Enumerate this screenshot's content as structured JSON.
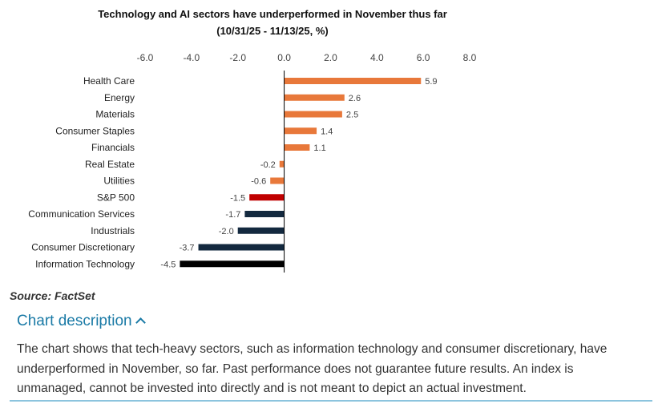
{
  "chart_data": {
    "type": "bar",
    "orientation": "horizontal",
    "title": "Technology and AI sectors have underperformed in November thus far",
    "subtitle": "(10/31/25 - 11/13/25, %)",
    "xlim": [
      -6,
      8
    ],
    "xticks": [
      "-6.0",
      "-4.0",
      "-2.0",
      "0.0",
      "2.0",
      "4.0",
      "6.0",
      "8.0"
    ],
    "xtick_values": [
      -6,
      -4,
      -2,
      0,
      2,
      4,
      6,
      8
    ],
    "categories": [
      "Health Care",
      "Energy",
      "Materials",
      "Consumer Staples",
      "Financials",
      "Real Estate",
      "Utilities",
      "S&P 500",
      "Communication Services",
      "Industrials",
      "Consumer Discretionary",
      "Information Technology"
    ],
    "values": [
      5.9,
      2.6,
      2.5,
      1.4,
      1.1,
      -0.2,
      -0.6,
      -1.5,
      -1.7,
      -2.0,
      -3.7,
      -4.5
    ],
    "value_labels": [
      "5.9",
      "2.6",
      "2.5",
      "1.4",
      "1.1",
      "-0.2",
      "-0.6",
      "-1.5",
      "-1.7",
      "-2.0",
      "-3.7",
      "-4.5"
    ],
    "colors": [
      "#e8783a",
      "#e8783a",
      "#e8783a",
      "#e8783a",
      "#e8783a",
      "#e8783a",
      "#e8783a",
      "#c00000",
      "#13293f",
      "#13293f",
      "#13293f",
      "#000000"
    ]
  },
  "source": "Source: FactSet",
  "chart_description": {
    "label": "Chart description",
    "text": "The chart shows that tech-heavy sectors, such as information technology and consumer discretionary, have underperformed in November, so far. Past performance does not guarantee future results. An index is unmanaged, cannot be invested into directly and is not meant to depict an actual investment."
  }
}
